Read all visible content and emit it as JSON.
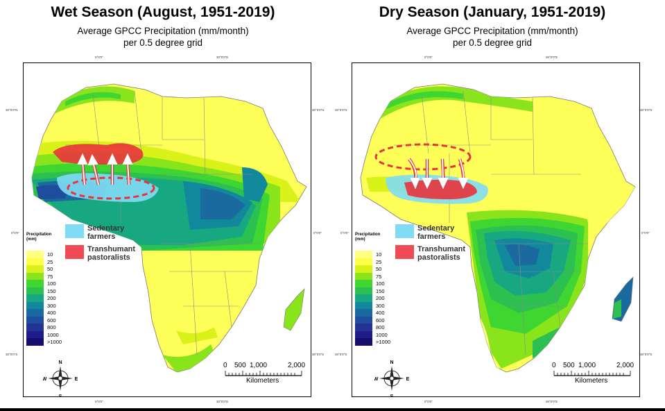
{
  "panels": [
    {
      "title": "Wet Season (August, 1951-2019)",
      "subtitle_line1": "Average GPCC Precipitation (mm/month)",
      "subtitle_line2": "per 0.5 degree grid",
      "coords": {
        "top_left": "0°0'0\"",
        "top_right": "30°0'0\"E",
        "left_n": "30°0'0\"N",
        "left_eq": "0°0'0\"",
        "left_s": "30°0'0\"S",
        "right_n": "30°0'0\"N",
        "right_eq": "0°0'0\"",
        "right_s": "30°0'0\"S",
        "bottom_left": "0°0'0\"",
        "bottom_right": "30°0'0\"E"
      },
      "legend": {
        "title_line1": "Precipitation",
        "title_line2": "(mm)",
        "items": [
          {
            "label": "10",
            "color": "#ffff80"
          },
          {
            "label": "25",
            "color": "#ffff4a"
          },
          {
            "label": "50",
            "color": "#d9f21a"
          },
          {
            "label": "75",
            "color": "#8ae41c"
          },
          {
            "label": "100",
            "color": "#3fd631"
          },
          {
            "label": "150",
            "color": "#2cc050"
          },
          {
            "label": "200",
            "color": "#17a881"
          },
          {
            "label": "300",
            "color": "#12889d"
          },
          {
            "label": "400",
            "color": "#1a6aa0"
          },
          {
            "label": "600",
            "color": "#1f4d9e"
          },
          {
            "label": "800",
            "color": "#223394"
          },
          {
            "label": "1000",
            "color": "#1f1b8a"
          },
          {
            "label": ">1000",
            "color": "#170d6b"
          }
        ]
      },
      "key": {
        "farmers_line1": "Sedentary",
        "farmers_line2": "farmers",
        "farmers_color": "#7fdcf4",
        "pastoralists_line1": "Transhumant",
        "pastoralists_line2": "pastoralists",
        "pastoralists_color": "#f04a55"
      },
      "scale": {
        "ticks": [
          "0",
          "500",
          "1,000",
          "2,000"
        ],
        "unit": "Kilometers"
      },
      "compass": {
        "n": "N",
        "s": "S",
        "e": "E",
        "w": "W"
      }
    },
    {
      "title": "Dry Season (January, 1951-2019)",
      "subtitle_line1": "Average GPCC Precipitation (mm/month)",
      "subtitle_line2": "per 0.5 degree grid",
      "coords": {
        "top_left": "0°0'0\"",
        "top_right": "30°0'0\"E",
        "left_n": "30°0'0\"N",
        "left_eq": "0°0'0\"",
        "left_s": "30°0'0\"S",
        "right_n": "30°0'0\"N",
        "right_eq": "0°0'0\"",
        "right_s": "30°0'0\"S",
        "bottom_left": "0°0'0\"",
        "bottom_right": "30°0'0\"E"
      },
      "legend": {
        "title_line1": "Precipitation",
        "title_line2": "(mm)",
        "items": [
          {
            "label": "10",
            "color": "#ffff80"
          },
          {
            "label": "25",
            "color": "#ffff4a"
          },
          {
            "label": "50",
            "color": "#d9f21a"
          },
          {
            "label": "75",
            "color": "#8ae41c"
          },
          {
            "label": "100",
            "color": "#3fd631"
          },
          {
            "label": "150",
            "color": "#2cc050"
          },
          {
            "label": "200",
            "color": "#17a881"
          },
          {
            "label": "300",
            "color": "#12889d"
          },
          {
            "label": "400",
            "color": "#1a6aa0"
          },
          {
            "label": "600",
            "color": "#1f4d9e"
          },
          {
            "label": "800",
            "color": "#223394"
          },
          {
            "label": "1000",
            "color": "#1f1b8a"
          },
          {
            "label": ">1000",
            "color": "#170d6b"
          }
        ]
      },
      "key": {
        "farmers_line1": "Sedentary",
        "farmers_line2": "farmers",
        "farmers_color": "#7fdcf4",
        "pastoralists_line1": "Transhumant",
        "pastoralists_line2": "pastoralists",
        "pastoralists_color": "#f04a55"
      },
      "scale": {
        "ticks": [
          "0",
          "500",
          "1,000",
          "2,000"
        ],
        "unit": "Kilometers"
      },
      "compass": {
        "n": "N",
        "s": "S",
        "e": "E",
        "w": "W"
      }
    }
  ]
}
